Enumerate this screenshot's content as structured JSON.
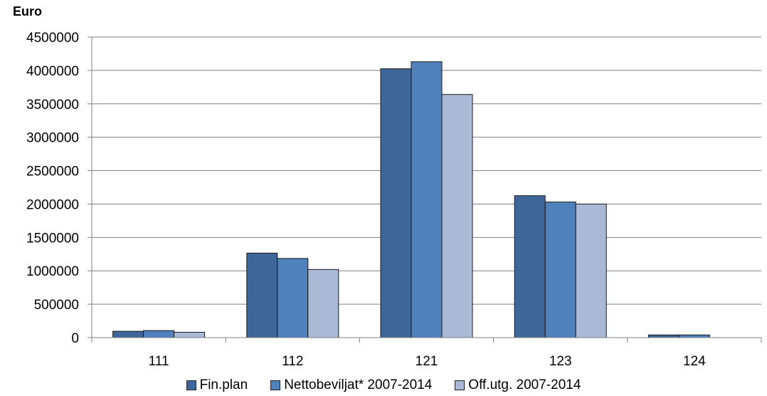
{
  "chart_data": {
    "type": "bar",
    "title": "",
    "ylabel": "Euro",
    "xlabel": "",
    "ylim": [
      0,
      4500000
    ],
    "yticks": [
      0,
      500000,
      1000000,
      1500000,
      2000000,
      2500000,
      3000000,
      3500000,
      4000000,
      4500000
    ],
    "categories": [
      "111",
      "112",
      "121",
      "123",
      "124"
    ],
    "grid": true,
    "legend_position": "bottom",
    "series": [
      {
        "name": "Fin.plan",
        "color": "#3E6699",
        "values": [
          95000,
          1265000,
          4025000,
          2125000,
          40000
        ]
      },
      {
        "name": "Nettobeviljat* 2007-2014",
        "color": "#4F81BD",
        "values": [
          105000,
          1185000,
          4130000,
          2030000,
          40000
        ]
      },
      {
        "name": "Off.utg. 2007-2014",
        "color": "#A9B9D6",
        "values": [
          80000,
          1020000,
          3640000,
          2000000,
          0
        ]
      }
    ]
  }
}
